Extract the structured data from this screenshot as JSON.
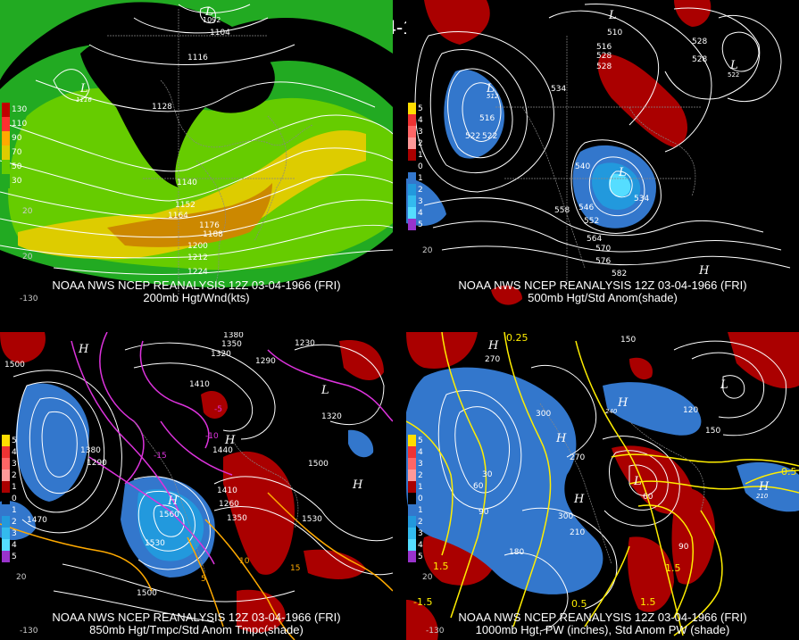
{
  "title": "12Z 03-04-1966 (FRI)",
  "panels": [
    {
      "id": "p1",
      "line1": "NOAA NWS NCEP REANALYSIS 12Z 03-04-1966 (FRI)",
      "line2": "200mb Hgt/Wnd(kts)",
      "legend": [
        "130",
        "110",
        "90",
        "70",
        "50",
        "30"
      ],
      "legend_colors": [
        "#c00000",
        "#ff3030",
        "#ffaa00",
        "#ddcc00",
        "#66cc00",
        "#22aa22"
      ],
      "labels": [
        "1104",
        "1116",
        "1128",
        "1140",
        "1152",
        "1164",
        "1176",
        "1188",
        "1200",
        "1212",
        "1224",
        "1092"
      ],
      "lows": [
        "L",
        "L"
      ],
      "low_values": [
        "1116",
        "1092"
      ],
      "lon": [
        "-130",
        "20",
        "20"
      ]
    },
    {
      "id": "p2",
      "line1": "NOAA NWS NCEP REANALYSIS 12Z 03-04-1966 (FRI)",
      "line2": "500mb Hgt/Std Anom(shade)",
      "legend": [
        "5",
        "4",
        "3",
        "2",
        "1",
        "0",
        "1",
        "2",
        "3",
        "4",
        "5"
      ],
      "legend_colors": [
        "#cc0000",
        "#ee3333",
        "#ff6666",
        "#ff9999",
        "#aa0000",
        "#000000",
        "#3377cc",
        "#2299dd",
        "#33bbee",
        "#55ddff",
        "#9933cc"
      ],
      "labels": [
        "510",
        "516",
        "522",
        "528",
        "534",
        "540",
        "546",
        "552",
        "558",
        "564",
        "570",
        "576",
        "582",
        "516",
        "528",
        "522",
        "528",
        "528",
        "512",
        "534",
        "522"
      ],
      "lows": [
        "L",
        "L",
        "L",
        "L"
      ],
      "highs": [
        "H"
      ],
      "lon": [
        "20"
      ]
    },
    {
      "id": "p3",
      "line1": "NOAA NWS NCEP REANALYSIS 12Z 03-04-1966 (FRI)",
      "line2": "850mb Hgt/Tmpc/Std Anom Tmpc(shade)",
      "legend": [
        "5",
        "4",
        "3",
        "2",
        "1",
        "0",
        "1",
        "2",
        "3",
        "4",
        "5"
      ],
      "labels": [
        "1380",
        "1350",
        "1320",
        "1290",
        "1410",
        "1440",
        "1470",
        "1500",
        "1530",
        "1560",
        "1260",
        "1230",
        "1290",
        "1320",
        "1380",
        "1410",
        "1350",
        "-15",
        "-10",
        "-5",
        "5",
        "10",
        "15",
        "1500",
        "1500",
        "1530"
      ],
      "highs": [
        "H",
        "H",
        "H",
        "H"
      ],
      "lows": [
        "L"
      ],
      "lon": [
        "-130",
        "20"
      ]
    },
    {
      "id": "p4",
      "line1": "NOAA NWS NCEP REANALYSIS 12Z 03-04-1966 (FRI)",
      "line2": "1000mb Hgt, PW (inches), Std Anom PW (shade)",
      "legend": [
        "5",
        "4",
        "3",
        "2",
        "1",
        "0",
        "1",
        "2",
        "3",
        "4",
        "5"
      ],
      "labels": [
        "0.25",
        "270",
        "150",
        "300",
        "300",
        "270",
        "210",
        "180",
        "90",
        "60",
        "30",
        "120",
        "150",
        "1.5",
        "1.5",
        "0.5",
        "0.5",
        "-1.5",
        "1.5",
        "60",
        "90",
        "210",
        "240"
      ],
      "highs": [
        "H",
        "H",
        "H",
        "H",
        "H"
      ],
      "lows": [
        "L",
        "L"
      ],
      "lon": [
        "-130",
        "20"
      ]
    }
  ]
}
